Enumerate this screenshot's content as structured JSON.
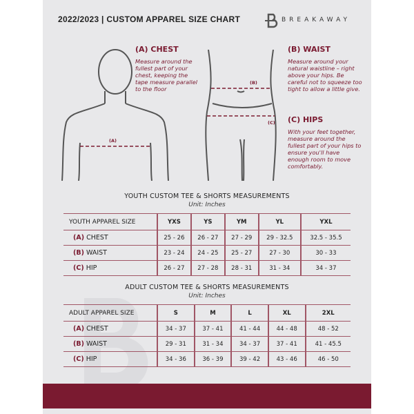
{
  "header": {
    "title": "2022/2023  |  CUSTOM APPAREL SIZE CHART",
    "brand": "BREAKAWAY"
  },
  "guide": {
    "chest": {
      "heading": "(A) CHEST",
      "text": "Measure around the fullest part of your chest, keeping the tape measure parallel to the floor",
      "marker": "(A)"
    },
    "waist": {
      "heading": "(B) WAIST",
      "text": "Measure around your natural waistline – right above your hips. Be careful not to squeeze too tight to allow a little give.",
      "marker": "(B)"
    },
    "hips": {
      "heading": "(C) HIPS",
      "text": "With your feet together, measure around the fullest part of your hips to ensure you'll have enough room to move comfortably.",
      "marker": "(C)"
    }
  },
  "youth": {
    "title": "YOUTH CUSTOM TEE & SHORTS MEASUREMENTS",
    "unit": "Unit: Inches",
    "header": [
      "YOUTH APPAREL SIZE",
      "YXS",
      "YS",
      "YM",
      "YL",
      "YXL"
    ],
    "rows": [
      {
        "code": "(A)",
        "name": "CHEST",
        "values": [
          "25 - 26",
          "26 - 27",
          "27 - 29",
          "29 - 32.5",
          "32.5 - 35.5"
        ]
      },
      {
        "code": "(B)",
        "name": "WAIST",
        "values": [
          "23 - 24",
          "24 - 25",
          "25 - 27",
          "27 - 30",
          "30 - 33"
        ]
      },
      {
        "code": "(C)",
        "name": "HIP",
        "values": [
          "26 - 27",
          "27 - 28",
          "28 - 31",
          "31 - 34",
          "34 - 37"
        ]
      }
    ]
  },
  "adult": {
    "title": "ADULT CUSTOM TEE & SHORTS MEASUREMENTS",
    "unit": "Unit: Inches",
    "header": [
      "ADULT APPAREL SIZE",
      "S",
      "M",
      "L",
      "XL",
      "2XL"
    ],
    "rows": [
      {
        "code": "(A)",
        "name": "CHEST",
        "values": [
          "34 - 37",
          "37 - 41",
          "41 - 44",
          "44 - 48",
          "48 - 52"
        ]
      },
      {
        "code": "(B)",
        "name": "WAIST",
        "values": [
          "29 - 31",
          "31 - 34",
          "34 - 37",
          "37 - 41",
          "41 - 45.5"
        ]
      },
      {
        "code": "(C)",
        "name": "HIP",
        "values": [
          "34 - 36",
          "36 - 39",
          "39 - 42",
          "43 - 46",
          "46 - 50"
        ]
      }
    ]
  },
  "colors": {
    "accent": "#7a1a30",
    "background": "#e8e8ea"
  }
}
